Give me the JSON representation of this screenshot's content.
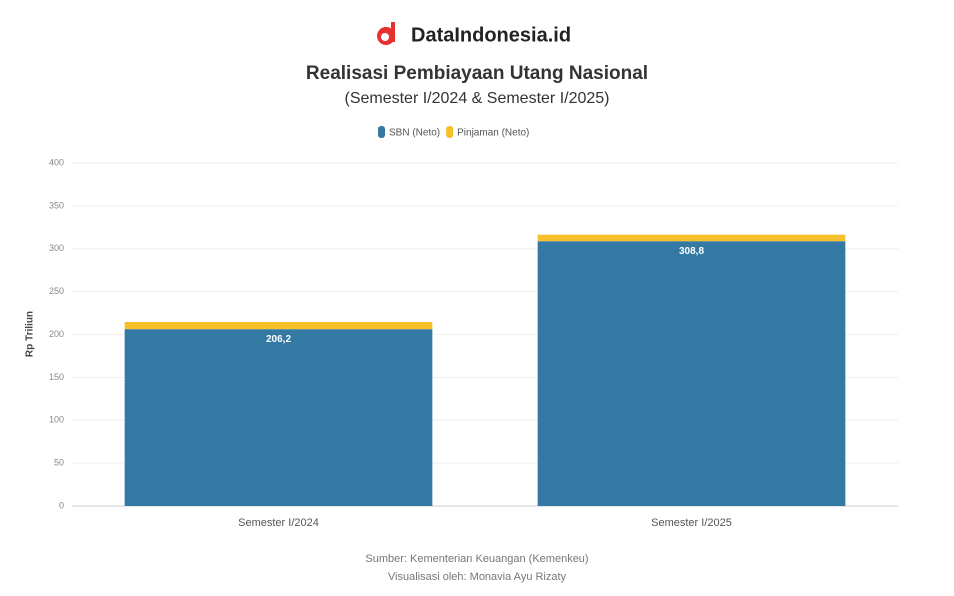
{
  "brand": "DataIndonesia.id",
  "chart_data": {
    "type": "stacked_bar",
    "title": "Realisasi Pembiayaan Utang Nasional",
    "subtitle": "(Semester I/2024 & Semester I/2025)",
    "y_label": "Rp Triliun",
    "categories": [
      "Semester I/2024",
      "Semester I/2025"
    ],
    "series": [
      {
        "name": "SBN (Neto)",
        "color": "#3478a4",
        "values": [
          206.2,
          308.8
        ],
        "value_labels": [
          "206,2",
          "308,8"
        ]
      },
      {
        "name": "Pinjaman (Neto)",
        "color": "#f5c02a",
        "values": [
          8.4,
          7.6
        ]
      }
    ],
    "ylim": [
      0,
      400
    ],
    "yticks": [
      0,
      50,
      100,
      150,
      200,
      250,
      300,
      350,
      400
    ],
    "grid": true,
    "legend": "top",
    "source": "Sumber: Kementerian Keuangan (Kemenkeu)",
    "credit": "Visualisasi oleh: Monavia Ayu Rizaty"
  }
}
